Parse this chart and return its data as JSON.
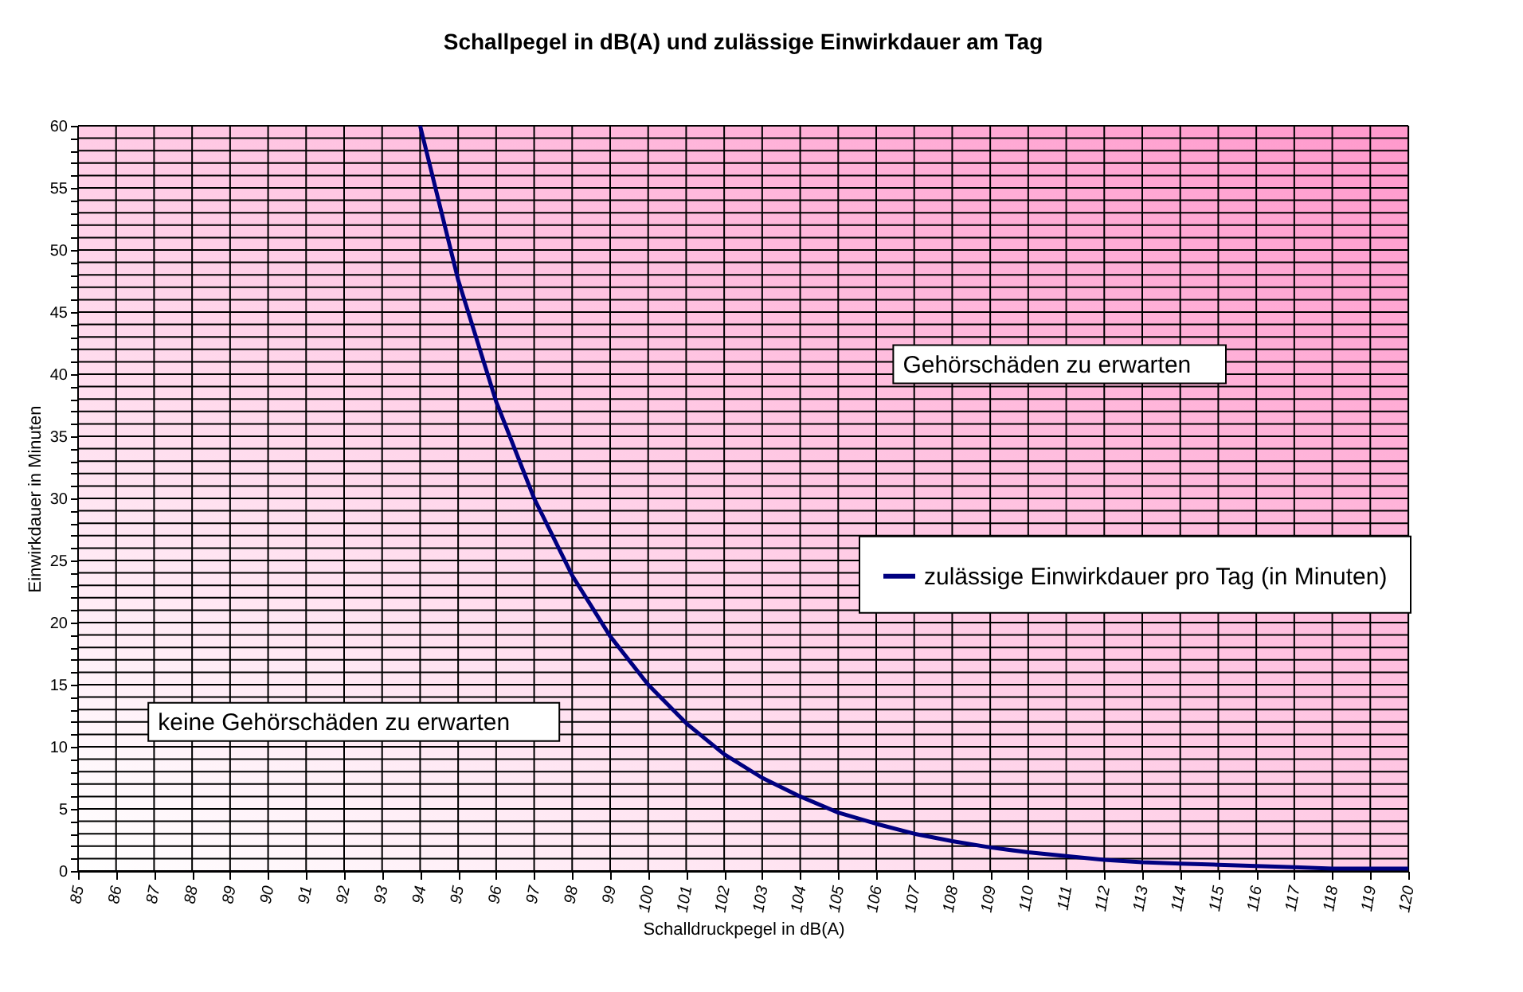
{
  "chart_data": {
    "type": "line",
    "title": "Schallpegel in dB(A) und zulässige Einwirkdauer am Tag",
    "xlabel": "Schalldruckpegel in dB(A)",
    "ylabel": "Einwirkdauer in Minuten",
    "x": [
      94,
      95,
      96,
      97,
      98,
      99,
      100,
      101,
      102,
      103,
      104,
      105,
      106,
      107,
      108,
      109,
      110,
      111,
      112,
      113,
      114,
      115,
      116,
      117,
      118,
      119,
      120
    ],
    "series": [
      {
        "name": "zulässige Einwirkdauer pro Tag (in Minuten)",
        "color": "#000080",
        "values": [
          60,
          47.6,
          37.8,
          30,
          23.8,
          18.9,
          15,
          11.9,
          9.4,
          7.5,
          6,
          4.7,
          3.8,
          3,
          2.4,
          1.9,
          1.5,
          1.2,
          0.9,
          0.7,
          0.6,
          0.5,
          0.4,
          0.3,
          0.2,
          0.2,
          0.2
        ]
      }
    ],
    "xlim": [
      85,
      120
    ],
    "xticks": [
      85,
      86,
      87,
      88,
      89,
      90,
      91,
      92,
      93,
      94,
      95,
      96,
      97,
      98,
      99,
      100,
      101,
      102,
      103,
      104,
      105,
      106,
      107,
      108,
      109,
      110,
      111,
      112,
      113,
      114,
      115,
      116,
      117,
      118,
      119,
      120
    ],
    "ylim": [
      0,
      60
    ],
    "yticks": [
      0,
      {
        "value": 1,
        "label": null
      },
      {
        "value": 2,
        "label": null
      },
      {
        "value": 3,
        "label": null
      },
      {
        "value": 4,
        "label": null
      },
      5,
      {
        "value": 6,
        "label": null
      },
      {
        "value": 7,
        "label": null
      },
      {
        "value": 8,
        "label": null
      },
      {
        "value": 9,
        "label": null
      },
      10,
      {
        "value": 11,
        "label": null
      },
      {
        "value": 12,
        "label": null
      },
      {
        "value": 13,
        "label": null
      },
      {
        "value": 14,
        "label": null
      },
      15,
      {
        "value": 16,
        "label": null
      },
      {
        "value": 17,
        "label": null
      },
      {
        "value": 18,
        "label": null
      },
      {
        "value": 19,
        "label": null
      },
      20,
      {
        "value": 21,
        "label": null
      },
      {
        "value": 22,
        "label": null
      },
      {
        "value": 23,
        "label": null
      },
      {
        "value": 24,
        "label": null
      },
      25,
      {
        "value": 26,
        "label": null
      },
      {
        "value": 27,
        "label": null
      },
      {
        "value": 28,
        "label": null
      },
      {
        "value": 29,
        "label": null
      },
      30,
      {
        "value": 31,
        "label": null
      },
      {
        "value": 32,
        "label": null
      },
      {
        "value": 33,
        "label": null
      },
      {
        "value": 34,
        "label": null
      },
      35,
      {
        "value": 36,
        "label": null
      },
      {
        "value": 37,
        "label": null
      },
      {
        "value": 38,
        "label": null
      },
      {
        "value": 39,
        "label": null
      },
      40,
      {
        "value": 41,
        "label": null
      },
      {
        "value": 42,
        "label": null
      },
      {
        "value": 43,
        "label": null
      },
      {
        "value": 44,
        "label": null
      },
      45,
      {
        "value": 46,
        "label": null
      },
      {
        "value": 47,
        "label": null
      },
      {
        "value": 48,
        "label": null
      },
      {
        "value": 49,
        "label": null
      },
      50,
      {
        "value": 51,
        "label": null
      },
      {
        "value": 52,
        "label": null
      },
      {
        "value": 53,
        "label": null
      },
      {
        "value": 54,
        "label": null
      },
      55,
      {
        "value": 56,
        "label": null
      },
      {
        "value": 57,
        "label": null
      },
      {
        "value": 58,
        "label": null
      },
      {
        "value": 59,
        "label": null
      },
      60
    ],
    "bands": [
      {
        "axis": "x",
        "from": 85,
        "to": 120,
        "color": "#ff99cc"
      }
    ],
    "annotations": [
      "Gehörschäden zu erwarten",
      "keine Gehörschäden zu erwarten"
    ],
    "grid": true,
    "legend": "right",
    "marker": "none",
    "line_style": "solid"
  }
}
